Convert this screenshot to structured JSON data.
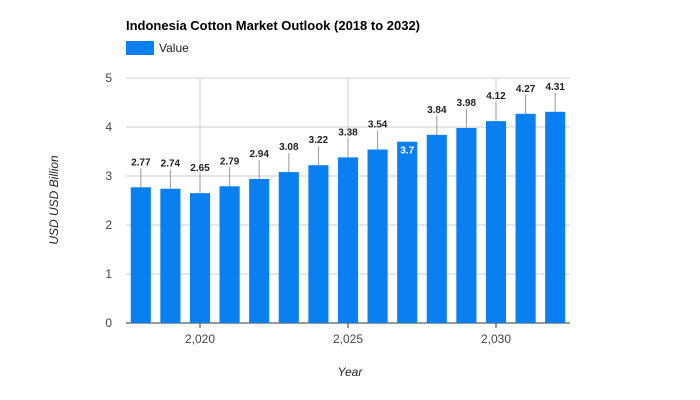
{
  "chart_data": {
    "type": "bar",
    "title": "Indonesia Cotton Market Outlook (2018 to 2032)",
    "xlabel": "Year",
    "ylabel": "USD USD Billion",
    "x": [
      2018,
      2019,
      2020,
      2021,
      2022,
      2023,
      2024,
      2025,
      2026,
      2027,
      2028,
      2029,
      2030,
      2031,
      2032
    ],
    "series": [
      {
        "name": "Value",
        "values": [
          2.77,
          2.74,
          2.65,
          2.79,
          2.94,
          3.08,
          3.22,
          3.38,
          3.54,
          3.7,
          3.84,
          3.98,
          4.12,
          4.27,
          4.31
        ],
        "color": "#0a7ff0"
      }
    ],
    "ylim": [
      0,
      5
    ],
    "yticks": [
      "0",
      "1",
      "2",
      "3",
      "4",
      "5"
    ],
    "xticks": [
      {
        "value": 2020,
        "label": "2,020"
      },
      {
        "value": 2025,
        "label": "2,025"
      },
      {
        "value": 2030,
        "label": "2,030"
      }
    ],
    "grid": true,
    "legend_position": "top-left",
    "inside_label_index": 9
  }
}
